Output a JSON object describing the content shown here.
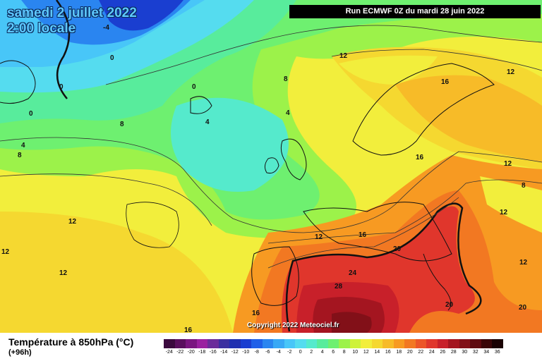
{
  "header": {
    "date_line": "samedi 2 juillet 2022",
    "time_line": "2:00 locale",
    "run_label": "Run ECMWF 0Z du mardi 28 juin 2022",
    "copyright": "Copyright 2022 Meteociel.fr"
  },
  "footer": {
    "title": "Température à 850hPa (°C)",
    "forecast_hour": "(+96h)"
  },
  "legend": [
    {
      "label": "-24",
      "color": "#3b0a3e"
    },
    {
      "label": "-22",
      "color": "#5a0f5e"
    },
    {
      "label": "-20",
      "color": "#7a1680"
    },
    {
      "label": "-18",
      "color": "#9a20a0"
    },
    {
      "label": "-16",
      "color": "#6a2c9a"
    },
    {
      "label": "-14",
      "color": "#3c2fa0"
    },
    {
      "label": "-12",
      "color": "#1f2fb0"
    },
    {
      "label": "-10",
      "color": "#1a3ed0"
    },
    {
      "label": "-8",
      "color": "#1f5fe8"
    },
    {
      "label": "-6",
      "color": "#2a85f0"
    },
    {
      "label": "-4",
      "color": "#38a8f5"
    },
    {
      "label": "-2",
      "color": "#48c6f8"
    },
    {
      "label": "0",
      "color": "#55dcef"
    },
    {
      "label": "2",
      "color": "#55eacc"
    },
    {
      "label": "4",
      "color": "#58ec9c"
    },
    {
      "label": "6",
      "color": "#6ef070"
    },
    {
      "label": "8",
      "color": "#9cf24a"
    },
    {
      "label": "10",
      "color": "#cef23a"
    },
    {
      "label": "12",
      "color": "#f2ee3c"
    },
    {
      "label": "14",
      "color": "#f5d830"
    },
    {
      "label": "16",
      "color": "#f7bb28"
    },
    {
      "label": "18",
      "color": "#f79a22"
    },
    {
      "label": "20",
      "color": "#f27822"
    },
    {
      "label": "22",
      "color": "#ec5528"
    },
    {
      "label": "24",
      "color": "#e0362c"
    },
    {
      "label": "26",
      "color": "#c8202a"
    },
    {
      "label": "28",
      "color": "#a41520"
    },
    {
      "label": "30",
      "color": "#821018"
    },
    {
      "label": "32",
      "color": "#5e0a10"
    },
    {
      "label": "34",
      "color": "#3a0608"
    },
    {
      "label": "36",
      "color": "#1a0204"
    }
  ],
  "isotherm_labels": [
    "-4",
    "0",
    "0",
    "0",
    "0",
    "4",
    "4",
    "4",
    "8",
    "8",
    "8",
    "12",
    "12",
    "12",
    "12",
    "12",
    "12",
    "12",
    "12",
    "12",
    "16",
    "16",
    "16",
    "16",
    "16",
    "20",
    "20",
    "20",
    "24",
    "28",
    "8"
  ]
}
